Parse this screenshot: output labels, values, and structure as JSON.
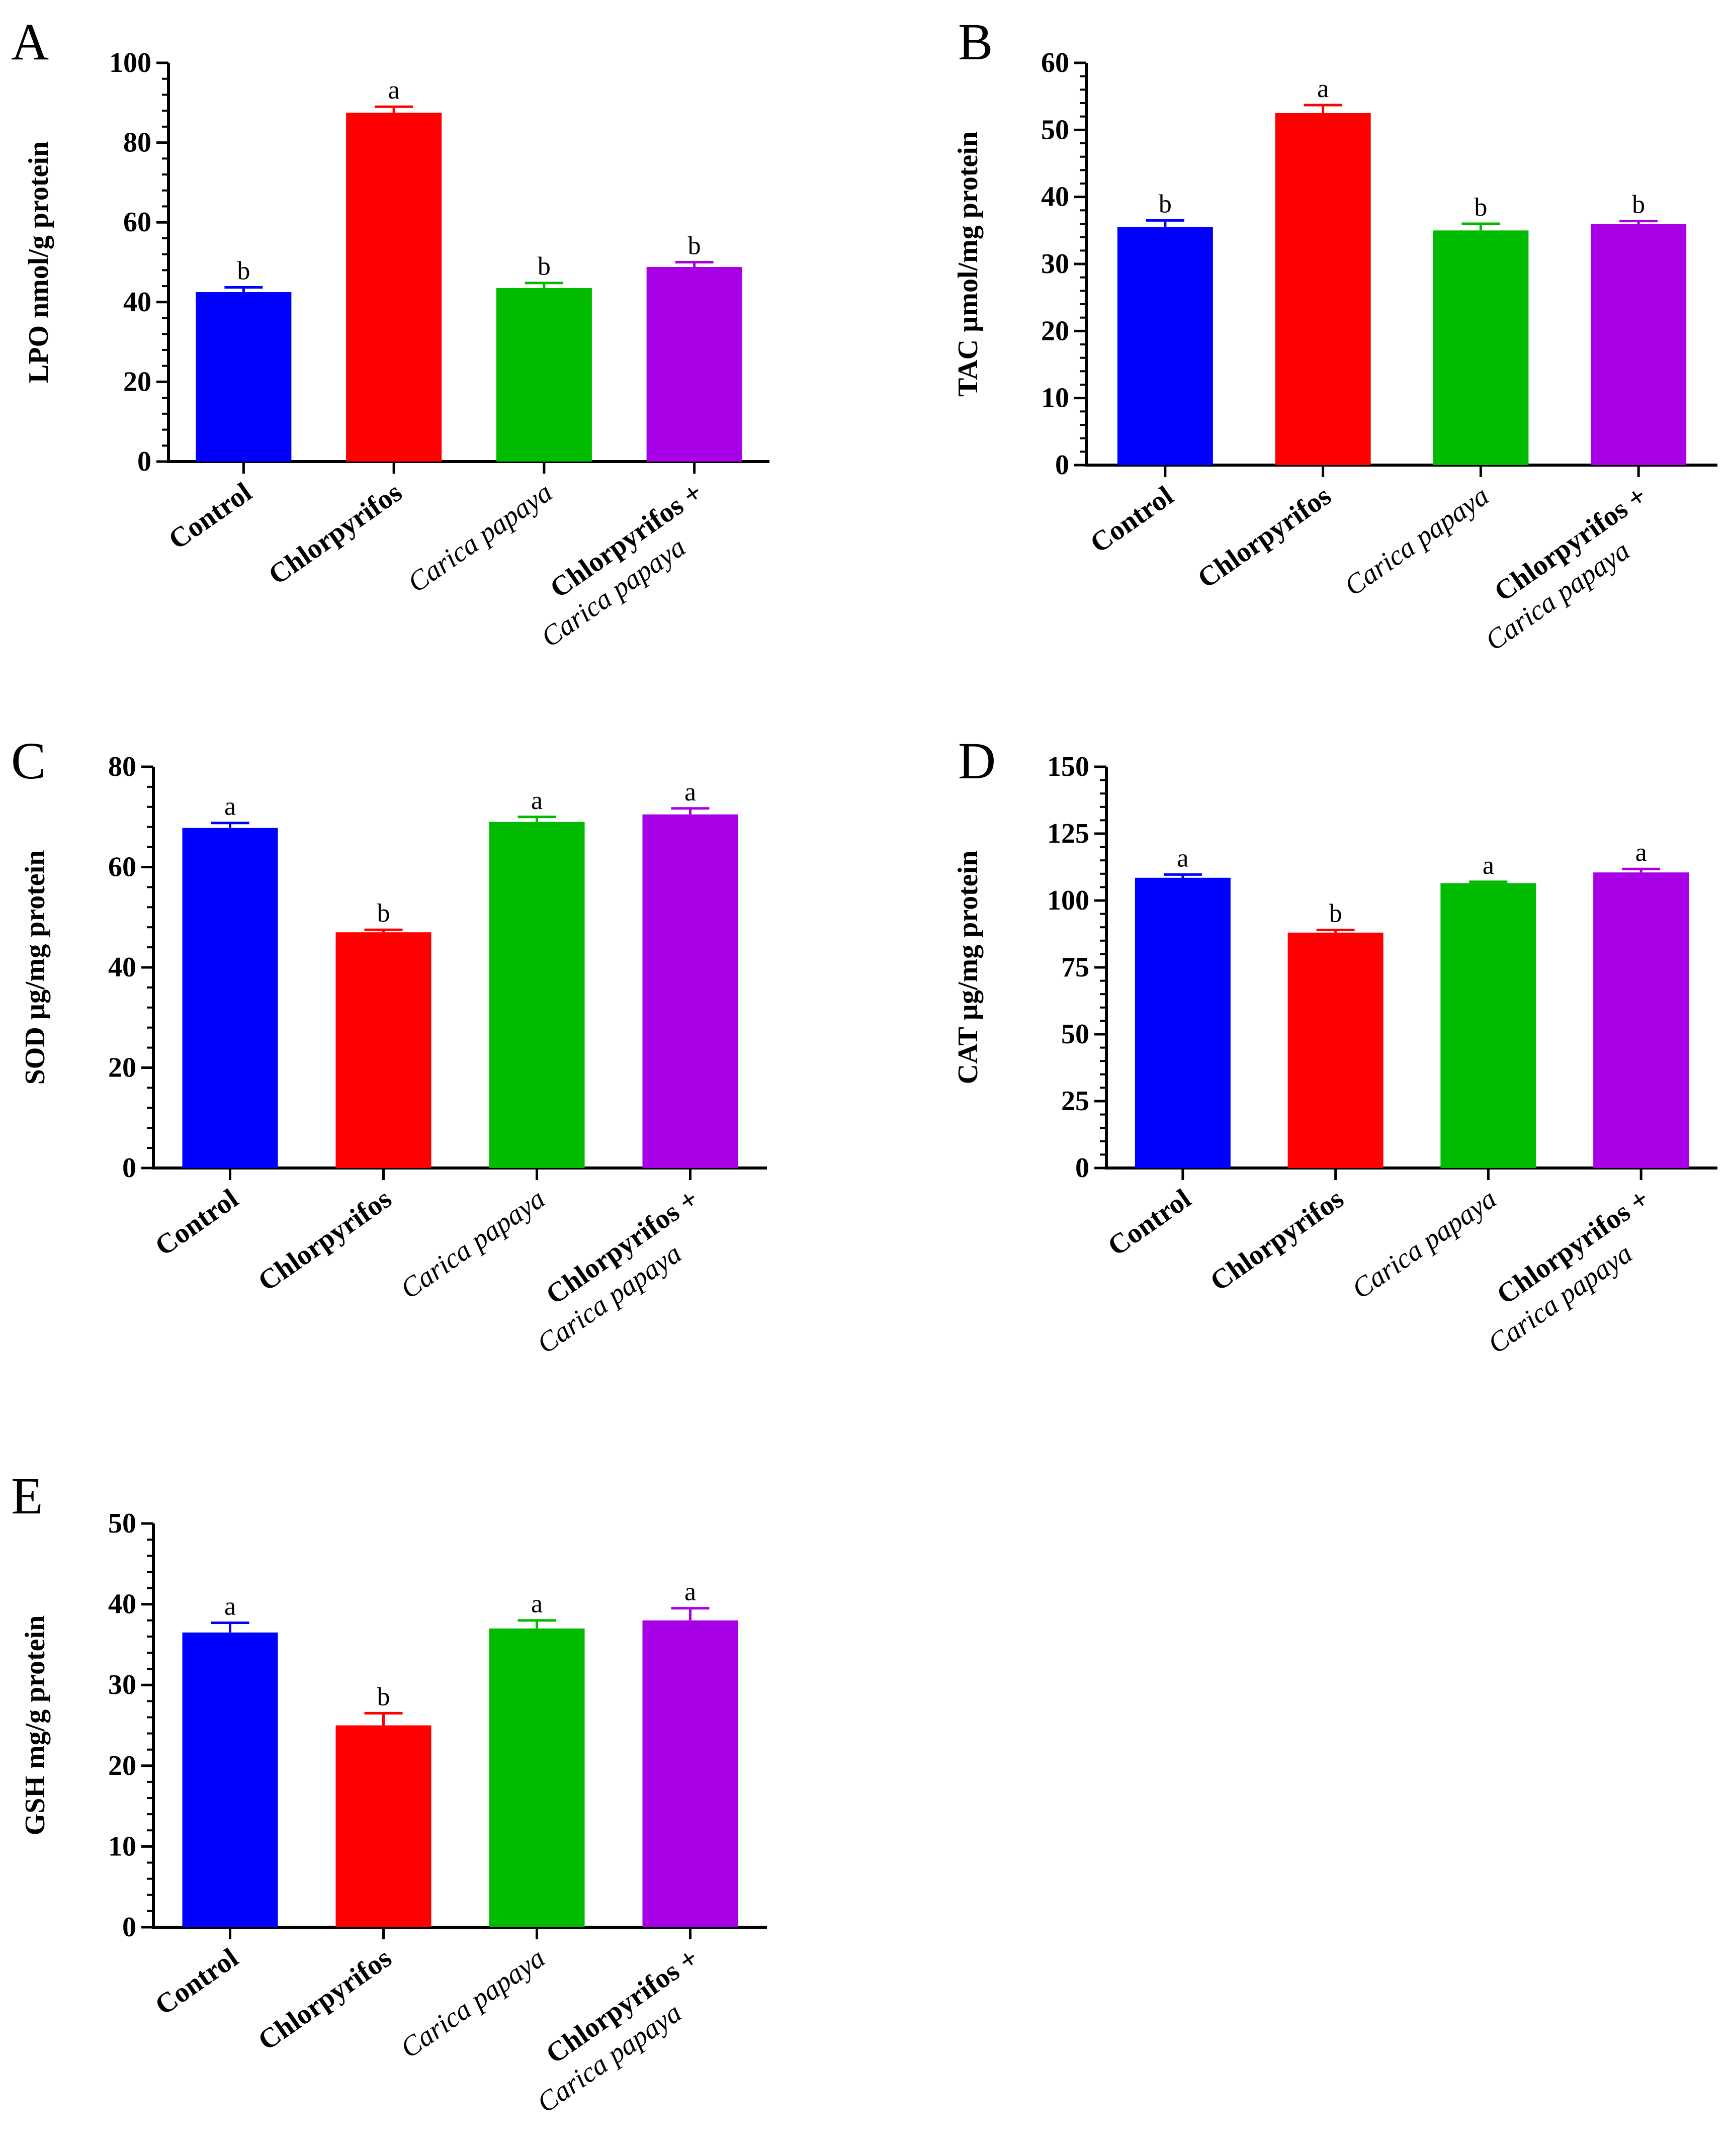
{
  "figure": {
    "colors": {
      "control": "#0000ff",
      "chlorpyrifos": "#ff0000",
      "carica": "#00bb00",
      "combo": "#a800e6",
      "axis": "#000000"
    }
  },
  "chart_data": [
    {
      "panel": "A",
      "type": "bar",
      "ylabel": "LPO nmol/g protein",
      "ylim": [
        0,
        100
      ],
      "yticks": [
        0,
        20,
        40,
        60,
        80,
        100
      ],
      "categories": [
        "Control",
        "Chlorpyrifos",
        "Carica papaya",
        "Chlorpyrifos + Carica papaya"
      ],
      "category_lines": [
        [
          "Control"
        ],
        [
          "Chlorpyrifos"
        ],
        [
          "Carica papaya"
        ],
        [
          "Chlorpyrifos +",
          "Carica papaya"
        ]
      ],
      "values": [
        42.5,
        87.5,
        43.5,
        48.8
      ],
      "errors": [
        1.2,
        1.5,
        1.3,
        1.2
      ],
      "significance": [
        "b",
        "a",
        "b",
        "b"
      ]
    },
    {
      "panel": "B",
      "type": "bar",
      "ylabel": "TAC µmol/mg protein",
      "ylim": [
        0,
        60
      ],
      "yticks": [
        0,
        10,
        20,
        30,
        40,
        50,
        60
      ],
      "categories": [
        "Control",
        "Chlorpyrifos",
        "Carica papaya",
        "Chlorpyrifos + Carica papaya"
      ],
      "category_lines": [
        [
          "Control"
        ],
        [
          "Chlorpyrifos"
        ],
        [
          "Carica papaya"
        ],
        [
          "Chlorpyrifos +",
          "Carica papaya"
        ]
      ],
      "values": [
        35.5,
        52.5,
        35.0,
        36.0
      ],
      "errors": [
        1.0,
        1.2,
        1.0,
        0.4
      ],
      "significance": [
        "b",
        "a",
        "b",
        "b"
      ]
    },
    {
      "panel": "C",
      "type": "bar",
      "ylabel": "SOD µg/mg protein",
      "ylim": [
        0,
        80
      ],
      "yticks": [
        0,
        20,
        40,
        60,
        80
      ],
      "categories": [
        "Control",
        "Chlorpyrifos",
        "Carica papaya",
        "Chlorpyrifos + Carica papaya"
      ],
      "category_lines": [
        [
          "Control"
        ],
        [
          "Chlorpyrifos"
        ],
        [
          "Carica papaya"
        ],
        [
          "Chlorpyrifos +",
          "Carica papaya"
        ]
      ],
      "values": [
        67.8,
        47.0,
        69.0,
        70.5
      ],
      "errors": [
        1.0,
        0.5,
        1.0,
        1.2
      ],
      "significance": [
        "a",
        "b",
        "a",
        "a"
      ]
    },
    {
      "panel": "D",
      "type": "bar",
      "ylabel": "CAT µg/mg protein",
      "ylim": [
        0,
        150
      ],
      "yticks": [
        0,
        25,
        50,
        75,
        100,
        125,
        150
      ],
      "categories": [
        "Control",
        "Chlorpyrifos",
        "Carica papaya",
        "Chlorpyrifos + Carica papaya"
      ],
      "category_lines": [
        [
          "Control"
        ],
        [
          "Chlorpyrifos"
        ],
        [
          "Carica papaya"
        ],
        [
          "Chlorpyrifos +",
          "Carica papaya"
        ]
      ],
      "values": [
        108.5,
        88.0,
        106.5,
        110.5
      ],
      "errors": [
        1.2,
        1.0,
        0.5,
        1.3
      ],
      "significance": [
        "a",
        "b",
        "a",
        "a"
      ]
    },
    {
      "panel": "E",
      "type": "bar",
      "ylabel": "GSH mg/g protein",
      "ylim": [
        0,
        50
      ],
      "yticks": [
        0,
        10,
        20,
        30,
        40,
        50
      ],
      "categories": [
        "Control",
        "Chlorpyrifos",
        "Carica papaya",
        "Chlorpyrifos + Carica papaya"
      ],
      "category_lines": [
        [
          "Control"
        ],
        [
          "Chlorpyrifos"
        ],
        [
          "Carica papaya"
        ],
        [
          "Chlorpyrifos +",
          "Carica papaya"
        ]
      ],
      "values": [
        36.5,
        25.0,
        37.0,
        38.0
      ],
      "errors": [
        1.2,
        1.5,
        1.0,
        1.5
      ],
      "significance": [
        "a",
        "b",
        "a",
        "a"
      ]
    }
  ]
}
